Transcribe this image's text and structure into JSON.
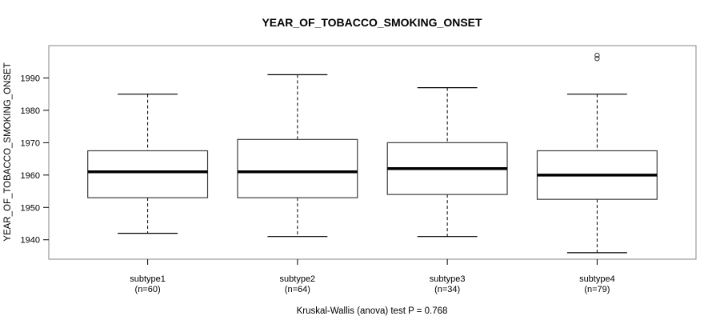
{
  "figure": {
    "background": "#ffffff"
  },
  "colors": {
    "frame": "#868686",
    "box_stroke": "#3d3d3d",
    "line": "#000000",
    "median": "#000000",
    "text": "#000000",
    "box_fill": "#ffffff"
  },
  "chart_data": {
    "type": "boxplot",
    "title": "YEAR_OF_TOBACCO_SMOKING_ONSET",
    "ylabel": "YEAR_OF_TOBACCO_SMOKING_ONSET",
    "xlabel": "",
    "caption": "Kruskal-Wallis (anova) test P = 0.768",
    "ylim": [
      1934,
      2000
    ],
    "yticks": [
      1940,
      1950,
      1960,
      1970,
      1980,
      1990
    ],
    "grid": false,
    "legend": null,
    "groups": [
      {
        "label": "subtype1",
        "count_label": "(n=60)",
        "n": 60,
        "stats": {
          "whisker_low": 1942,
          "q1": 1953,
          "median": 1961,
          "q3": 1967.5,
          "whisker_high": 1985
        },
        "outliers": []
      },
      {
        "label": "subtype2",
        "count_label": "(n=64)",
        "n": 64,
        "stats": {
          "whisker_low": 1941,
          "q1": 1953,
          "median": 1961,
          "q3": 1971,
          "whisker_high": 1991
        },
        "outliers": []
      },
      {
        "label": "subtype3",
        "count_label": "(n=34)",
        "n": 34,
        "stats": {
          "whisker_low": 1941,
          "q1": 1954,
          "median": 1962,
          "q3": 1970,
          "whisker_high": 1987
        },
        "outliers": []
      },
      {
        "label": "subtype4",
        "count_label": "(n=79)",
        "n": 79,
        "stats": {
          "whisker_low": 1936,
          "q1": 1952.5,
          "median": 1960,
          "q3": 1967.5,
          "whisker_high": 1985
        },
        "outliers": [
          1996,
          1997
        ]
      }
    ]
  }
}
